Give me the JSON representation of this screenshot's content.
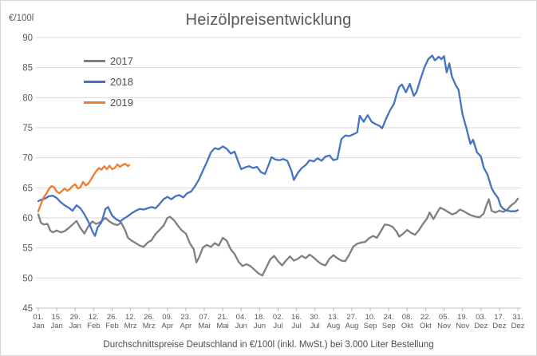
{
  "chart": {
    "title": "Heizölpreisentwicklung",
    "y_axis_title": "€/100l",
    "caption": "Durchschnittspreise Deutschland in €/100l (inkl. MwSt.) bei 3.000 Liter Bestellung"
  },
  "colors": {
    "text_primary": "#595959",
    "text_secondary": "#4d4d4d",
    "gridline": "#d9d9d9",
    "axis_line": "#bfbfbf",
    "series_2017": "#7f7f7f",
    "series_2018": "#4472c4",
    "series_2019": "#ed7d31"
  },
  "chart_data": {
    "type": "line",
    "title": "Heizölpreisentwicklung",
    "ylabel": "€/100l",
    "xlabel": "",
    "ylim": [
      45,
      90
    ],
    "y_ticks": [
      45,
      50,
      55,
      60,
      65,
      70,
      75,
      80,
      85,
      90
    ],
    "grid": "horizontal",
    "legend_position": "inside-top-left",
    "x_unit": "day_of_year",
    "x_days_span": 364,
    "x_tick_interval_days": 14,
    "x_tick_labels": [
      "01. Jan",
      "15. Jan",
      "29. Jan",
      "12. Feb",
      "26. Feb",
      "12. Mrz",
      "26. Mrz",
      "09. Apr",
      "23. Apr",
      "07. Mai",
      "21. Mai",
      "04. Jun",
      "18. Jun",
      "02. Jul",
      "16. Jul",
      "30. Jul",
      "13. Aug",
      "27. Aug",
      "10. Sep",
      "24. Sep",
      "08. Okt",
      "22. Okt",
      "05. Nov",
      "19. Nov",
      "03. Dez",
      "17. Dez",
      "31. Dez"
    ],
    "series": [
      {
        "name": "2017",
        "color": "#7f7f7f",
        "points": [
          [
            0,
            60.6
          ],
          [
            2,
            59.2
          ],
          [
            4,
            58.9
          ],
          [
            7,
            59.0
          ],
          [
            9,
            57.9
          ],
          [
            11,
            57.6
          ],
          [
            14,
            57.9
          ],
          [
            17,
            57.6
          ],
          [
            20,
            57.8
          ],
          [
            23,
            58.3
          ],
          [
            26,
            58.9
          ],
          [
            29,
            59.5
          ],
          [
            32,
            58.3
          ],
          [
            35,
            57.4
          ],
          [
            38,
            58.6
          ],
          [
            41,
            59.4
          ],
          [
            44,
            59.0
          ],
          [
            47,
            59.3
          ],
          [
            51,
            60.0
          ],
          [
            54,
            59.4
          ],
          [
            57,
            59.0
          ],
          [
            60,
            58.8
          ],
          [
            63,
            59.2
          ],
          [
            66,
            57.9
          ],
          [
            68,
            56.7
          ],
          [
            71,
            56.2
          ],
          [
            74,
            55.8
          ],
          [
            77,
            55.4
          ],
          [
            80,
            55.2
          ],
          [
            83,
            55.9
          ],
          [
            86,
            56.3
          ],
          [
            89,
            57.3
          ],
          [
            92,
            58.0
          ],
          [
            95,
            58.7
          ],
          [
            98,
            60.0
          ],
          [
            100,
            60.2
          ],
          [
            103,
            59.6
          ],
          [
            106,
            58.7
          ],
          [
            109,
            57.9
          ],
          [
            112,
            57.4
          ],
          [
            115,
            55.8
          ],
          [
            118,
            54.8
          ],
          [
            120,
            52.6
          ],
          [
            122,
            53.4
          ],
          [
            125,
            55.1
          ],
          [
            128,
            55.5
          ],
          [
            131,
            55.2
          ],
          [
            134,
            55.8
          ],
          [
            137,
            55.4
          ],
          [
            140,
            56.7
          ],
          [
            143,
            56.2
          ],
          [
            146,
            54.8
          ],
          [
            149,
            54.0
          ],
          [
            152,
            52.7
          ],
          [
            155,
            52.0
          ],
          [
            158,
            52.3
          ],
          [
            161,
            52.0
          ],
          [
            164,
            51.4
          ],
          [
            167,
            50.8
          ],
          [
            170,
            50.4
          ],
          [
            173,
            51.7
          ],
          [
            176,
            53.1
          ],
          [
            179,
            53.7
          ],
          [
            182,
            52.8
          ],
          [
            185,
            52.1
          ],
          [
            188,
            52.9
          ],
          [
            191,
            53.6
          ],
          [
            194,
            52.9
          ],
          [
            197,
            53.2
          ],
          [
            200,
            53.7
          ],
          [
            203,
            53.3
          ],
          [
            206,
            53.9
          ],
          [
            209,
            53.4
          ],
          [
            212,
            52.8
          ],
          [
            215,
            52.3
          ],
          [
            218,
            52.1
          ],
          [
            221,
            53.2
          ],
          [
            224,
            53.8
          ],
          [
            227,
            53.3
          ],
          [
            230,
            52.9
          ],
          [
            233,
            52.8
          ],
          [
            236,
            53.9
          ],
          [
            239,
            55.2
          ],
          [
            242,
            55.7
          ],
          [
            245,
            55.9
          ],
          [
            248,
            56.0
          ],
          [
            251,
            56.6
          ],
          [
            254,
            57.0
          ],
          [
            257,
            56.7
          ],
          [
            260,
            57.8
          ],
          [
            263,
            58.9
          ],
          [
            266,
            58.8
          ],
          [
            269,
            58.5
          ],
          [
            272,
            57.7
          ],
          [
            274,
            56.9
          ],
          [
            277,
            57.4
          ],
          [
            280,
            58.0
          ],
          [
            283,
            57.5
          ],
          [
            286,
            57.2
          ],
          [
            289,
            58.0
          ],
          [
            292,
            59.0
          ],
          [
            295,
            59.9
          ],
          [
            297,
            60.9
          ],
          [
            300,
            59.8
          ],
          [
            303,
            61.0
          ],
          [
            305,
            61.7
          ],
          [
            308,
            61.4
          ],
          [
            311,
            61.0
          ],
          [
            314,
            60.6
          ],
          [
            317,
            60.8
          ],
          [
            320,
            61.4
          ],
          [
            323,
            61.1
          ],
          [
            326,
            60.7
          ],
          [
            329,
            60.4
          ],
          [
            332,
            60.2
          ],
          [
            335,
            60.1
          ],
          [
            338,
            60.7
          ],
          [
            340,
            62.0
          ],
          [
            342,
            63.1
          ],
          [
            344,
            61.2
          ],
          [
            347,
            60.9
          ],
          [
            350,
            61.2
          ],
          [
            353,
            61.0
          ],
          [
            356,
            61.4
          ],
          [
            359,
            62.1
          ],
          [
            362,
            62.6
          ],
          [
            364,
            63.2
          ]
        ]
      },
      {
        "name": "2018",
        "color": "#4472c4",
        "points": [
          [
            0,
            62.8
          ],
          [
            2,
            63.0
          ],
          [
            5,
            63.2
          ],
          [
            8,
            63.6
          ],
          [
            11,
            63.7
          ],
          [
            14,
            63.3
          ],
          [
            17,
            62.6
          ],
          [
            20,
            62.1
          ],
          [
            23,
            61.7
          ],
          [
            26,
            61.2
          ],
          [
            29,
            62.1
          ],
          [
            32,
            61.6
          ],
          [
            35,
            60.6
          ],
          [
            38,
            59.4
          ],
          [
            41,
            57.8
          ],
          [
            43,
            57.0
          ],
          [
            45,
            58.4
          ],
          [
            48,
            59.3
          ],
          [
            51,
            61.5
          ],
          [
            53,
            61.8
          ],
          [
            56,
            60.4
          ],
          [
            59,
            59.8
          ],
          [
            62,
            59.4
          ],
          [
            65,
            59.9
          ],
          [
            68,
            60.3
          ],
          [
            71,
            60.8
          ],
          [
            74,
            61.2
          ],
          [
            77,
            61.5
          ],
          [
            80,
            61.4
          ],
          [
            83,
            61.6
          ],
          [
            86,
            61.8
          ],
          [
            89,
            61.6
          ],
          [
            92,
            62.3
          ],
          [
            95,
            63.1
          ],
          [
            98,
            63.5
          ],
          [
            101,
            63.1
          ],
          [
            104,
            63.6
          ],
          [
            107,
            63.8
          ],
          [
            110,
            63.4
          ],
          [
            113,
            64.1
          ],
          [
            116,
            64.4
          ],
          [
            119,
            65.3
          ],
          [
            122,
            66.4
          ],
          [
            125,
            67.9
          ],
          [
            128,
            69.3
          ],
          [
            131,
            70.9
          ],
          [
            134,
            71.6
          ],
          [
            137,
            71.4
          ],
          [
            140,
            71.9
          ],
          [
            143,
            71.5
          ],
          [
            146,
            70.7
          ],
          [
            149,
            71.0
          ],
          [
            152,
            69.2
          ],
          [
            154,
            68.1
          ],
          [
            157,
            68.4
          ],
          [
            160,
            68.6
          ],
          [
            163,
            68.3
          ],
          [
            166,
            68.5
          ],
          [
            169,
            67.6
          ],
          [
            172,
            67.3
          ],
          [
            175,
            68.9
          ],
          [
            177,
            70.1
          ],
          [
            180,
            69.7
          ],
          [
            183,
            69.6
          ],
          [
            186,
            69.8
          ],
          [
            189,
            69.5
          ],
          [
            192,
            67.9
          ],
          [
            194,
            66.3
          ],
          [
            197,
            67.5
          ],
          [
            200,
            68.3
          ],
          [
            203,
            68.8
          ],
          [
            206,
            69.6
          ],
          [
            209,
            69.4
          ],
          [
            212,
            69.9
          ],
          [
            215,
            69.5
          ],
          [
            218,
            70.2
          ],
          [
            221,
            70.4
          ],
          [
            224,
            69.6
          ],
          [
            227,
            69.8
          ],
          [
            230,
            73.1
          ],
          [
            233,
            73.7
          ],
          [
            236,
            73.6
          ],
          [
            239,
            73.9
          ],
          [
            242,
            74.2
          ],
          [
            244,
            77.0
          ],
          [
            247,
            76.0
          ],
          [
            250,
            77.1
          ],
          [
            253,
            76.0
          ],
          [
            256,
            75.6
          ],
          [
            259,
            75.3
          ],
          [
            261,
            74.9
          ],
          [
            264,
            76.5
          ],
          [
            267,
            77.9
          ],
          [
            270,
            79.0
          ],
          [
            272,
            80.6
          ],
          [
            274,
            81.8
          ],
          [
            276,
            82.2
          ],
          [
            279,
            80.9
          ],
          [
            282,
            82.3
          ],
          [
            285,
            80.3
          ],
          [
            287,
            80.9
          ],
          [
            290,
            83.0
          ],
          [
            293,
            85.0
          ],
          [
            296,
            86.4
          ],
          [
            299,
            87.0
          ],
          [
            301,
            86.2
          ],
          [
            304,
            86.8
          ],
          [
            306,
            86.4
          ],
          [
            308,
            86.9
          ],
          [
            310,
            84.2
          ],
          [
            312,
            85.7
          ],
          [
            314,
            83.5
          ],
          [
            317,
            82.0
          ],
          [
            319,
            81.3
          ],
          [
            322,
            77.2
          ],
          [
            325,
            74.9
          ],
          [
            328,
            72.3
          ],
          [
            330,
            73.0
          ],
          [
            333,
            70.9
          ],
          [
            336,
            70.2
          ],
          [
            338,
            68.4
          ],
          [
            341,
            67.2
          ],
          [
            344,
            65.0
          ],
          [
            346,
            64.2
          ],
          [
            349,
            63.3
          ],
          [
            351,
            62.0
          ],
          [
            353,
            61.5
          ],
          [
            356,
            61.2
          ],
          [
            359,
            61.1
          ],
          [
            362,
            61.1
          ],
          [
            364,
            61.3
          ]
        ]
      },
      {
        "name": "2019",
        "color": "#ed7d31",
        "points": [
          [
            0,
            61.1
          ],
          [
            2,
            62.3
          ],
          [
            4,
            63.4
          ],
          [
            6,
            64.0
          ],
          [
            8,
            64.8
          ],
          [
            10,
            65.3
          ],
          [
            12,
            65.1
          ],
          [
            14,
            64.4
          ],
          [
            16,
            64.1
          ],
          [
            18,
            64.5
          ],
          [
            20,
            64.9
          ],
          [
            22,
            64.5
          ],
          [
            24,
            64.8
          ],
          [
            26,
            65.3
          ],
          [
            28,
            65.6
          ],
          [
            30,
            64.9
          ],
          [
            32,
            65.1
          ],
          [
            34,
            66.0
          ],
          [
            36,
            65.4
          ],
          [
            38,
            65.7
          ],
          [
            40,
            66.4
          ],
          [
            42,
            67.1
          ],
          [
            44,
            67.8
          ],
          [
            46,
            68.3
          ],
          [
            48,
            68.0
          ],
          [
            50,
            68.6
          ],
          [
            52,
            68.1
          ],
          [
            54,
            68.7
          ],
          [
            56,
            68.1
          ],
          [
            58,
            68.3
          ],
          [
            60,
            68.9
          ],
          [
            62,
            68.5
          ],
          [
            64,
            68.8
          ],
          [
            66,
            69.0
          ],
          [
            68,
            68.6
          ],
          [
            69,
            68.8
          ]
        ]
      }
    ]
  }
}
